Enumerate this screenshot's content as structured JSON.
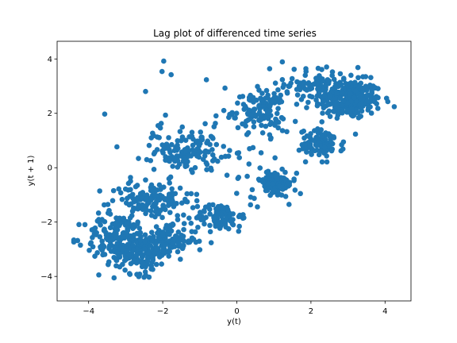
{
  "chart_data": {
    "type": "scatter",
    "title": "Lag plot of differenced time series",
    "xlabel": "y(t)",
    "ylabel": "y(t + 1)",
    "xlim": [
      -4.85,
      4.7
    ],
    "ylim": [
      -4.9,
      4.65
    ],
    "xticks": [
      -4,
      -2,
      0,
      2,
      4
    ],
    "yticks": [
      -4,
      -2,
      0,
      2,
      4
    ],
    "x_tick_labels": [
      "−4",
      "−2",
      "0",
      "2",
      "4"
    ],
    "y_tick_labels": [
      "−4",
      "−2",
      "0",
      "2",
      "4"
    ],
    "grid": false,
    "marker_color": "#1f77b4",
    "clusters": [
      {
        "center": [
          3.0,
          2.5
        ],
        "spread": [
          0.45,
          0.35
        ],
        "count": 260
      },
      {
        "center": [
          2.3,
          3.1
        ],
        "spread": [
          0.5,
          0.3
        ],
        "count": 90
      },
      {
        "center": [
          0.6,
          2.1
        ],
        "spread": [
          0.35,
          0.35
        ],
        "count": 110
      },
      {
        "center": [
          2.3,
          0.9
        ],
        "spread": [
          0.3,
          0.25
        ],
        "count": 90
      },
      {
        "center": [
          -1.3,
          0.6
        ],
        "spread": [
          0.45,
          0.35
        ],
        "count": 120
      },
      {
        "center": [
          1.0,
          -0.6
        ],
        "spread": [
          0.3,
          0.25
        ],
        "count": 90
      },
      {
        "center": [
          -2.3,
          -1.2
        ],
        "spread": [
          0.55,
          0.35
        ],
        "count": 130
      },
      {
        "center": [
          -0.5,
          -1.8
        ],
        "spread": [
          0.3,
          0.25
        ],
        "count": 90
      },
      {
        "center": [
          -3.2,
          -2.6
        ],
        "spread": [
          0.45,
          0.45
        ],
        "count": 160
      },
      {
        "center": [
          -2.6,
          -3.1
        ],
        "spread": [
          0.35,
          0.4
        ],
        "count": 130
      },
      {
        "center": [
          -1.8,
          -2.7
        ],
        "spread": [
          0.35,
          0.25
        ],
        "count": 110
      },
      {
        "center": [
          0.0,
          1.0
        ],
        "spread": [
          1.6,
          1.6
        ],
        "count": 70
      }
    ],
    "seed": 12345
  }
}
